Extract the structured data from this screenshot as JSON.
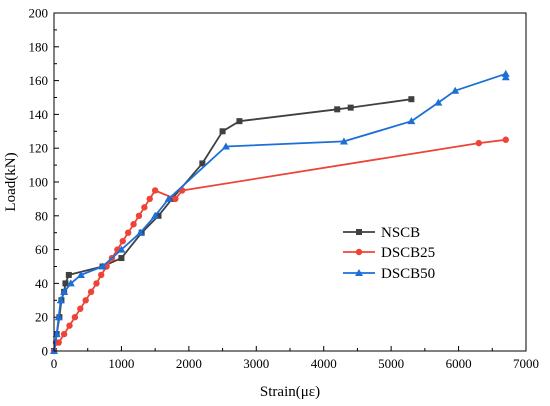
{
  "chart_data": {
    "type": "line",
    "xlabel": "Strain(με)",
    "ylabel": "Load(kN)",
    "xlim": [
      0,
      7000
    ],
    "ylim": [
      0,
      200
    ],
    "xticks": [
      0,
      1000,
      2000,
      3000,
      4000,
      5000,
      6000,
      7000
    ],
    "yticks": [
      0,
      20,
      40,
      60,
      80,
      100,
      120,
      140,
      160,
      180,
      200
    ],
    "grid": false,
    "legend_position": "right",
    "series": [
      {
        "name": "NSCB",
        "color": "#404040",
        "marker": "square",
        "points": [
          [
            0,
            0
          ],
          [
            40,
            10
          ],
          [
            80,
            20
          ],
          [
            110,
            30
          ],
          [
            150,
            35
          ],
          [
            170,
            40
          ],
          [
            220,
            45
          ],
          [
            720,
            50
          ],
          [
            1000,
            55
          ],
          [
            1300,
            70
          ],
          [
            1550,
            80
          ],
          [
            1750,
            90
          ],
          [
            2200,
            111
          ],
          [
            2500,
            130
          ],
          [
            2750,
            136
          ],
          [
            4200,
            143
          ],
          [
            4400,
            144
          ],
          [
            5300,
            149
          ]
        ]
      },
      {
        "name": "DSCB25",
        "color": "#ed4437",
        "marker": "circle",
        "points": [
          [
            0,
            0
          ],
          [
            30,
            5
          ],
          [
            70,
            5
          ],
          [
            150,
            10
          ],
          [
            230,
            15
          ],
          [
            310,
            20
          ],
          [
            390,
            25
          ],
          [
            470,
            30
          ],
          [
            550,
            35
          ],
          [
            630,
            40
          ],
          [
            700,
            45
          ],
          [
            780,
            50
          ],
          [
            860,
            55
          ],
          [
            940,
            60
          ],
          [
            1020,
            65
          ],
          [
            1100,
            70
          ],
          [
            1180,
            75
          ],
          [
            1260,
            80
          ],
          [
            1340,
            85
          ],
          [
            1420,
            90
          ],
          [
            1500,
            95
          ],
          [
            1800,
            90
          ],
          [
            1900,
            95
          ],
          [
            6300,
            123
          ],
          [
            6700,
            125
          ]
        ]
      },
      {
        "name": "DSCB50",
        "color": "#1c6fd6",
        "marker": "triangle",
        "points": [
          [
            0,
            0
          ],
          [
            40,
            10
          ],
          [
            70,
            20
          ],
          [
            100,
            30
          ],
          [
            150,
            35
          ],
          [
            250,
            40
          ],
          [
            400,
            45
          ],
          [
            720,
            50
          ],
          [
            1000,
            60
          ],
          [
            1280,
            70
          ],
          [
            1500,
            80
          ],
          [
            1700,
            90
          ],
          [
            2550,
            121
          ],
          [
            4300,
            124
          ],
          [
            5300,
            136
          ],
          [
            5700,
            147
          ],
          [
            5950,
            154
          ],
          [
            6700,
            164
          ],
          [
            6700,
            162
          ]
        ]
      }
    ]
  }
}
